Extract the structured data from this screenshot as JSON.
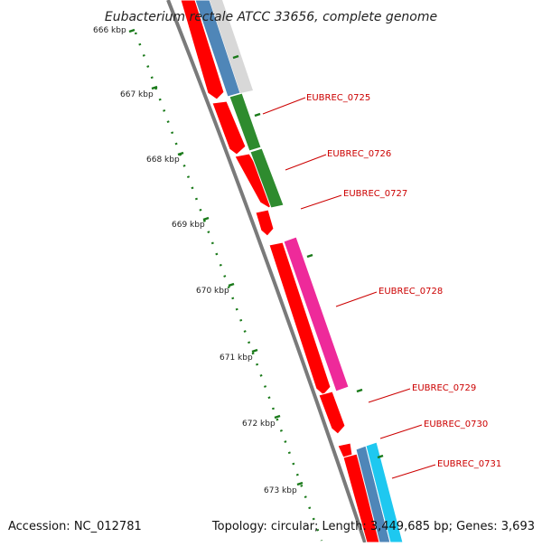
{
  "title": "Eubacterium rectale ATCC 33656, complete genome",
  "footer": {
    "accession": "Accession: NC_012781",
    "topology": "Topology: circular; Length: 3,449,685 bp; Genes: 3,693"
  },
  "ruler": {
    "ticks": [
      "666 kbp",
      "667 kbp",
      "668 kbp",
      "669 kbp",
      "670 kbp",
      "671 kbp",
      "672 kbp",
      "673 kbp"
    ]
  },
  "genes": [
    {
      "label": "EUBREC_0725"
    },
    {
      "label": "EUBREC_0726"
    },
    {
      "label": "EUBREC_0727"
    },
    {
      "label": "EUBREC_0728"
    },
    {
      "label": "EUBREC_0729"
    },
    {
      "label": "EUBREC_0730"
    },
    {
      "label": "EUBREC_0731"
    }
  ],
  "colors": {
    "cds": "#ff0000",
    "steelblue": "#4f86b8",
    "green": "#2e8b2e",
    "magenta": "#ee2a9a",
    "cyan": "#1ec8f0",
    "backbone": "#7a7a7a",
    "ruler": "#1a7a1a",
    "label": "#cc0000"
  }
}
